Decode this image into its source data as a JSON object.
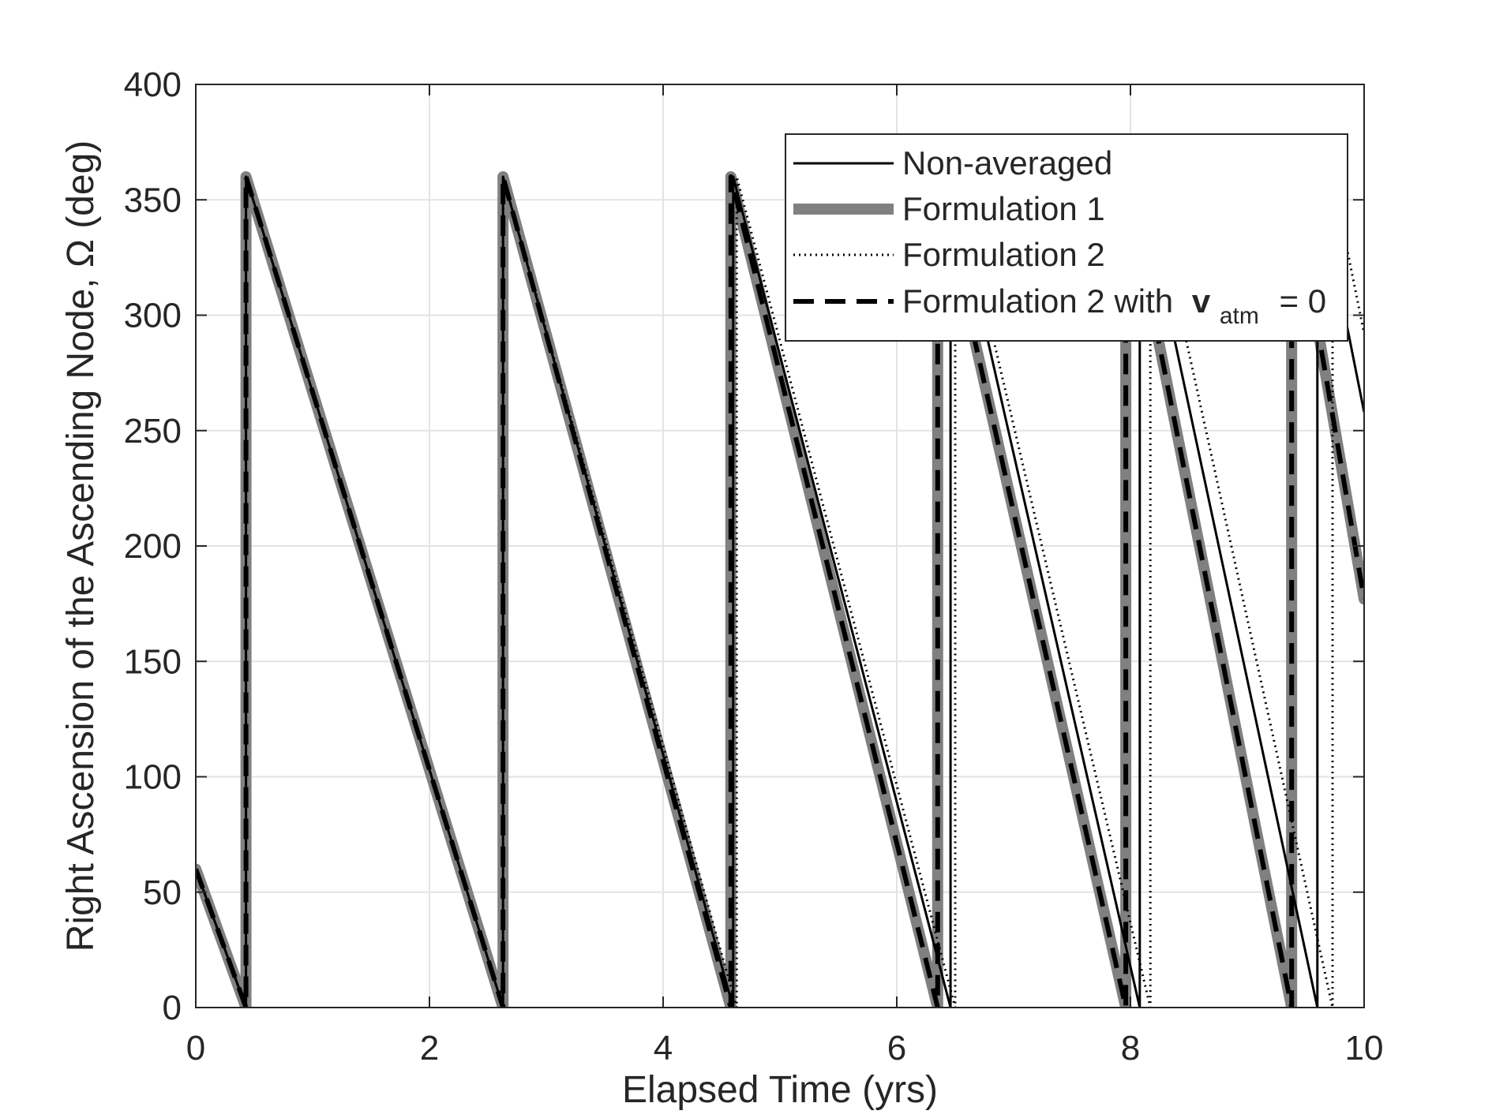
{
  "chart_data": {
    "type": "line",
    "xlabel": "Elapsed Time (yrs)",
    "ylabel": "Right Ascension of the Ascending Node, Ω (deg)",
    "xlim": [
      0,
      10
    ],
    "ylim": [
      0,
      400
    ],
    "xticks": [
      0,
      2,
      4,
      6,
      8,
      10
    ],
    "yticks": [
      0,
      50,
      100,
      150,
      200,
      250,
      300,
      350,
      400
    ],
    "grid": true,
    "legend_position": "top-right",
    "legend": {
      "entries": [
        "Non-averaged",
        "Formulation 1",
        "Formulation 2",
        "Formulation 2 with"
      ],
      "vatm_symbol": "v",
      "vatm_subscript": "atm",
      "vatm_suffix": "= 0"
    },
    "series": [
      {
        "name": "Non-averaged",
        "color": "#000000",
        "style": "solid",
        "points": [
          [
            0,
            60
          ],
          [
            0.43,
            0
          ],
          [
            0.43,
            360
          ],
          [
            2.63,
            0
          ],
          [
            2.63,
            360
          ],
          [
            4.6,
            0
          ],
          [
            4.6,
            360
          ],
          [
            6.46,
            0
          ],
          [
            6.46,
            360
          ],
          [
            8.08,
            0
          ],
          [
            8.08,
            360
          ],
          [
            9.6,
            0
          ],
          [
            9.6,
            360
          ],
          [
            10,
            258
          ]
        ]
      },
      {
        "name": "Formulation 1",
        "color": "#808080",
        "style": "solid-thick",
        "points": [
          [
            0,
            60
          ],
          [
            0.43,
            0
          ],
          [
            0.43,
            360
          ],
          [
            2.63,
            0
          ],
          [
            2.63,
            360
          ],
          [
            4.58,
            0
          ],
          [
            4.58,
            360
          ],
          [
            6.35,
            0
          ],
          [
            6.35,
            360
          ],
          [
            7.96,
            0
          ],
          [
            7.96,
            360
          ],
          [
            9.38,
            0
          ],
          [
            9.38,
            360
          ],
          [
            10,
            177
          ]
        ]
      },
      {
        "name": "Formulation 2",
        "color": "#000000",
        "style": "dotted",
        "points": [
          [
            0,
            60
          ],
          [
            0.43,
            0
          ],
          [
            0.43,
            360
          ],
          [
            2.63,
            0
          ],
          [
            2.63,
            360
          ],
          [
            4.63,
            0
          ],
          [
            4.63,
            360
          ],
          [
            6.5,
            0
          ],
          [
            6.5,
            360
          ],
          [
            8.17,
            0
          ],
          [
            8.17,
            360
          ],
          [
            9.73,
            0
          ],
          [
            9.73,
            360
          ],
          [
            10,
            292
          ]
        ]
      },
      {
        "name": "Formulation 2 with v_atm = 0",
        "color": "#000000",
        "style": "dashed",
        "points": [
          [
            0,
            60
          ],
          [
            0.43,
            0
          ],
          [
            0.43,
            360
          ],
          [
            2.63,
            0
          ],
          [
            2.63,
            360
          ],
          [
            4.58,
            0
          ],
          [
            4.58,
            360
          ],
          [
            6.35,
            0
          ],
          [
            6.35,
            360
          ],
          [
            7.96,
            0
          ],
          [
            7.96,
            360
          ],
          [
            9.38,
            0
          ],
          [
            9.38,
            360
          ],
          [
            10,
            177
          ]
        ]
      }
    ]
  }
}
